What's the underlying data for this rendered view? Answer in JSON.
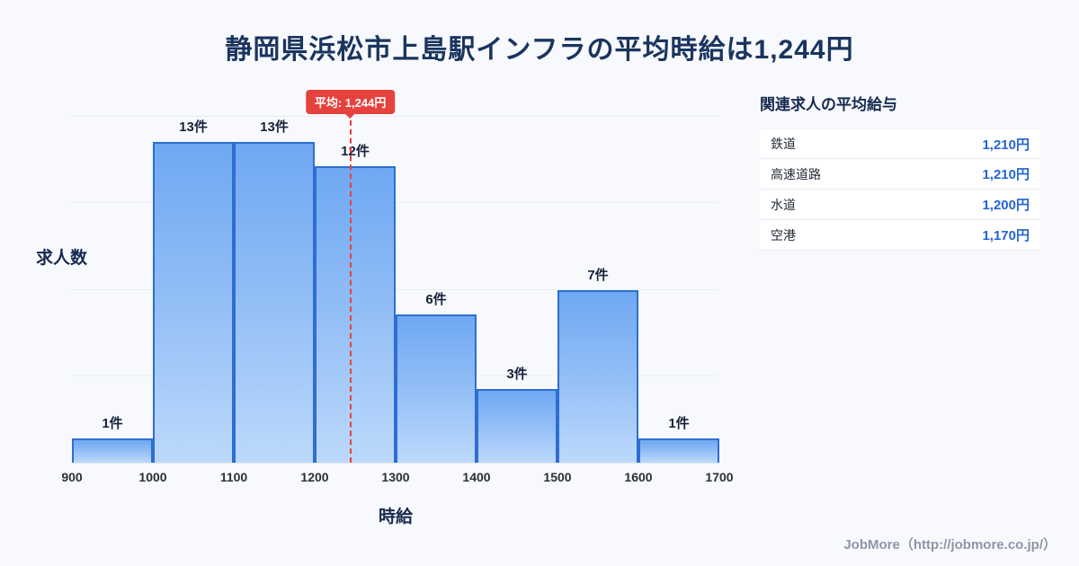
{
  "title": "静岡県浜松市上島駅インフラの平均時給は1,244円",
  "chart_data": {
    "type": "bar",
    "title": "静岡県浜松市上島駅インフラの平均時給は1,244円",
    "xlabel": "時給",
    "ylabel": "求人数",
    "x_ticks": [
      900,
      1000,
      1100,
      1200,
      1300,
      1400,
      1500,
      1600,
      1700
    ],
    "ylim": [
      0,
      14
    ],
    "grid": true,
    "gridline_values": [
      3.5,
      7,
      10.5,
      14
    ],
    "bins": [
      {
        "range": [
          900,
          1000
        ],
        "count": 1,
        "label": "1件"
      },
      {
        "range": [
          1000,
          1100
        ],
        "count": 13,
        "label": "13件"
      },
      {
        "range": [
          1100,
          1200
        ],
        "count": 13,
        "label": "13件"
      },
      {
        "range": [
          1200,
          1300
        ],
        "count": 12,
        "label": "12件"
      },
      {
        "range": [
          1300,
          1400
        ],
        "count": 6,
        "label": "6件"
      },
      {
        "range": [
          1400,
          1500
        ],
        "count": 3,
        "label": "3件"
      },
      {
        "range": [
          1500,
          1600
        ],
        "count": 7,
        "label": "7件"
      },
      {
        "range": [
          1600,
          1700
        ],
        "count": 1,
        "label": "1件"
      }
    ],
    "average": {
      "value": 1244,
      "label": "平均: 1,244円"
    }
  },
  "side_panel": {
    "heading": "関連求人の平均給与",
    "rows": [
      {
        "label": "鉄道",
        "value": "1,210円"
      },
      {
        "label": "高速道路",
        "value": "1,210円"
      },
      {
        "label": "水道",
        "value": "1,200円"
      },
      {
        "label": "空港",
        "value": "1,170円"
      }
    ]
  },
  "footer": {
    "credit": "JobMore（http://jobmore.co.jp/）"
  },
  "colors": {
    "title_text": "#1a355e",
    "bar_gradient_top": "#6fa8f2",
    "bar_gradient_bottom": "#bcd9fb",
    "bar_border": "#2e6ed2",
    "average_red": "#e6423d",
    "value_blue": "#2463d1",
    "background": "#f7f9fc"
  }
}
